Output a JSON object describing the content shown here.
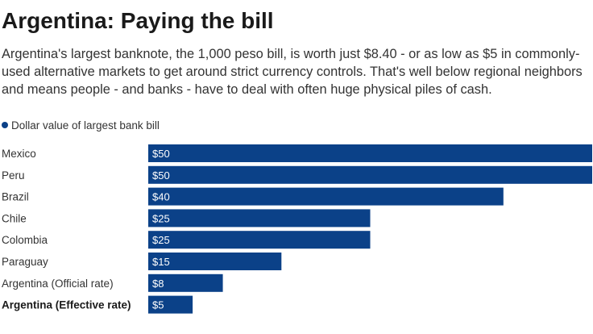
{
  "title": "Argentina: Paying the bill",
  "subtitle": "Argentina's largest banknote, the 1,000 peso bill, is worth just $8.40 - or as low as $5 in commonly-used alternative markets to get around strict currency controls. That's well below regional neighbors and means people - and banks - have to deal with often huge physical piles of cash.",
  "colors": {
    "bar": "#0b4188",
    "label_text": "#ffffff"
  },
  "chart_data": {
    "type": "bar",
    "orientation": "horizontal",
    "title": "Argentina: Paying the bill",
    "xlabel": "",
    "ylabel": "",
    "xlim": [
      0,
      50
    ],
    "grid": false,
    "legend": {
      "position": "top-left",
      "entries": [
        "Dollar value of largest bank bill"
      ]
    },
    "categories": [
      "Mexico",
      "Peru",
      "Brazil",
      "Chile",
      "Colombia",
      "Paraguay",
      "Argentina (Official rate)",
      "Argentina (Effective rate)"
    ],
    "values": [
      50,
      50,
      40,
      25,
      25,
      15,
      8.4,
      5
    ],
    "value_labels": [
      "$50",
      "$50",
      "$40",
      "$25",
      "$25",
      "$15",
      "$8",
      "$5"
    ],
    "highlighted_category": "Argentina (Effective rate)",
    "series": [
      {
        "name": "Dollar value of largest bank bill",
        "values": [
          50,
          50,
          40,
          25,
          25,
          15,
          8.4,
          5
        ]
      }
    ]
  }
}
